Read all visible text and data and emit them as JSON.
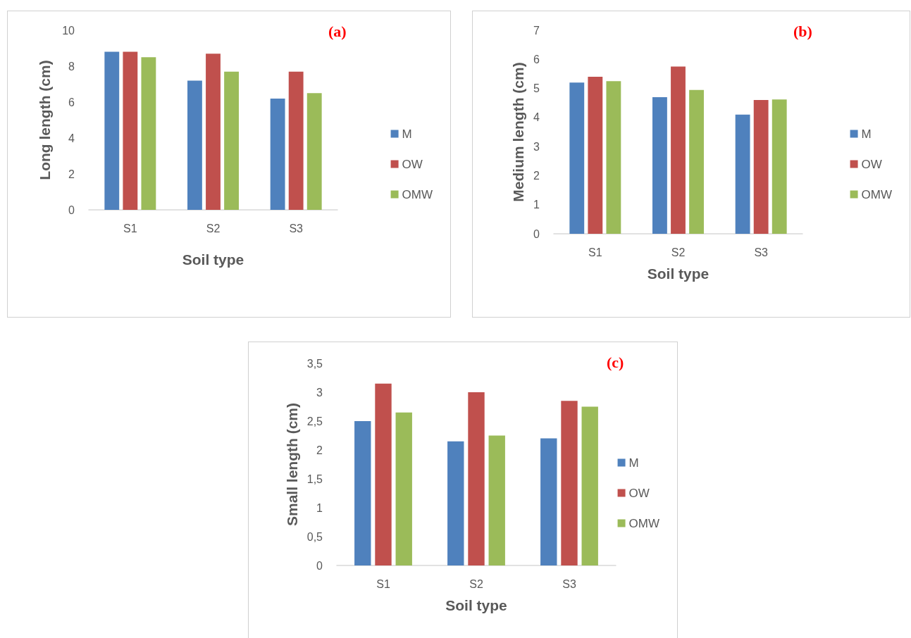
{
  "chart_data": [
    {
      "type": "bar",
      "title": "(a)",
      "xlabel": "Soil type",
      "ylabel": "Long length (cm)",
      "categories": [
        "S1",
        "S2",
        "S3"
      ],
      "series": [
        {
          "name": "M",
          "color": "#4f81bd",
          "values": [
            8.8,
            7.2,
            6.2
          ]
        },
        {
          "name": "OW",
          "color": "#c0504d",
          "values": [
            8.8,
            8.7,
            7.7
          ]
        },
        {
          "name": "OMW",
          "color": "#9bbb59",
          "values": [
            8.5,
            7.7,
            6.5
          ]
        }
      ],
      "ylim": [
        0,
        10
      ],
      "yticks": [
        0,
        2,
        4,
        6,
        8,
        10
      ],
      "legend": "right"
    },
    {
      "type": "bar",
      "title": "(b)",
      "xlabel": "Soil type",
      "ylabel": "Medium length (cm)",
      "categories": [
        "S1",
        "S2",
        "S3"
      ],
      "series": [
        {
          "name": "M",
          "color": "#4f81bd",
          "values": [
            5.2,
            4.7,
            4.1
          ]
        },
        {
          "name": "OW",
          "color": "#c0504d",
          "values": [
            5.4,
            5.75,
            4.6
          ]
        },
        {
          "name": "OMW",
          "color": "#9bbb59",
          "values": [
            5.25,
            4.95,
            4.62
          ]
        }
      ],
      "ylim": [
        0,
        7
      ],
      "yticks": [
        0,
        1,
        2,
        3,
        4,
        5,
        6,
        7
      ],
      "legend": "right"
    },
    {
      "type": "bar",
      "title": "(c)",
      "xlabel": "Soil type",
      "ylabel": "Small length (cm)",
      "categories": [
        "S1",
        "S2",
        "S3"
      ],
      "series": [
        {
          "name": "M",
          "color": "#4f81bd",
          "values": [
            2.5,
            2.15,
            2.2
          ]
        },
        {
          "name": "OW",
          "color": "#c0504d",
          "values": [
            3.15,
            3.0,
            2.85
          ]
        },
        {
          "name": "OMW",
          "color": "#9bbb59",
          "values": [
            2.65,
            2.25,
            2.75
          ]
        }
      ],
      "ylim": [
        0,
        3.5
      ],
      "yticks": [
        0,
        {
          "value": 0.5,
          "label": "0,5"
        },
        1,
        {
          "value": 1.5,
          "label": "1,5"
        },
        2,
        {
          "value": 2.5,
          "label": "2,5"
        },
        3,
        {
          "value": 3.5,
          "label": "3,5"
        }
      ],
      "legend": "right"
    }
  ]
}
